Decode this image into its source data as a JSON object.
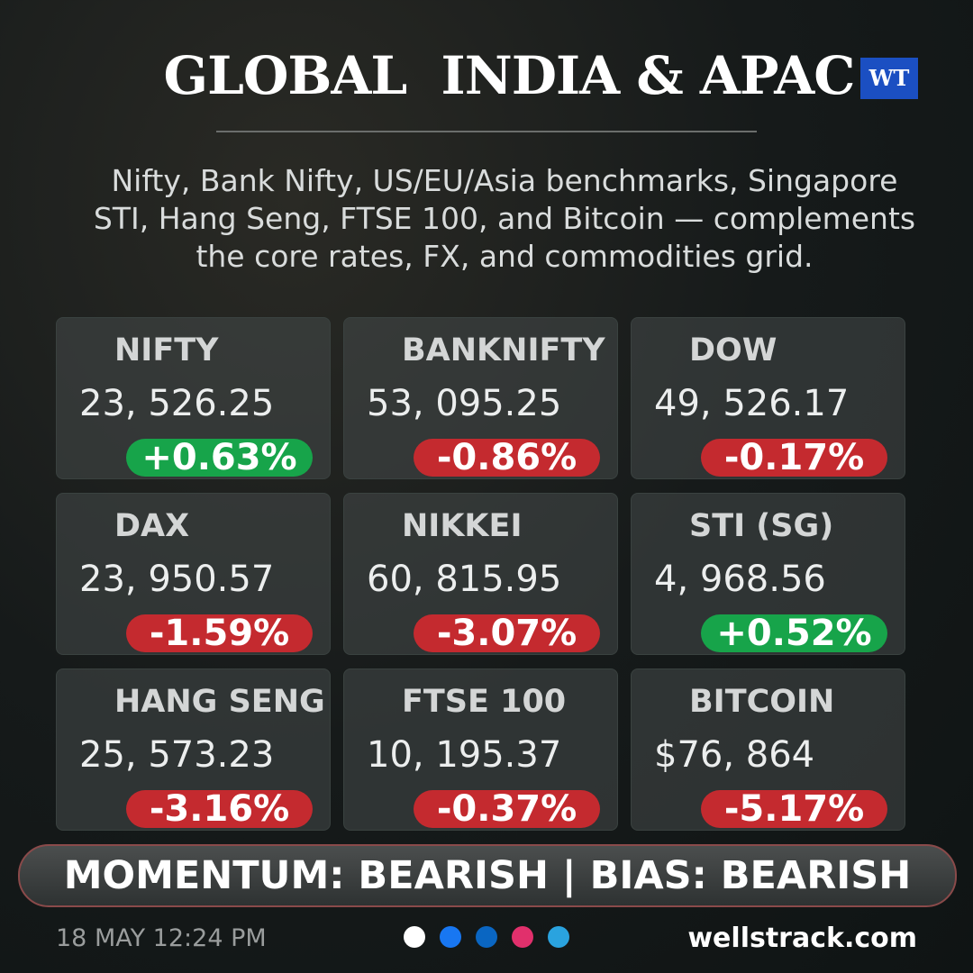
{
  "header": {
    "title": "GLOBAL  INDIA & APAC",
    "logo": "WT",
    "subtitle_lines": [
      "Nifty, Bank Nifty, US/EU/Asia benchmarks, Singapore",
      "STI, Hang Seng, FTSE 100, and Bitcoin — complements",
      "the core rates, FX, and commodities grid."
    ]
  },
  "cards": [
    {
      "name": "NIFTY",
      "value": "23, 526.25",
      "change": "+0.63%",
      "color": "#17a44a"
    },
    {
      "name": "BANKNIFTY",
      "value": "53, 095.25",
      "change": "-0.86%",
      "color": "#c42a2f"
    },
    {
      "name": "DOW",
      "value": "49, 526.17",
      "change": "-0.17%",
      "color": "#c42a2f"
    },
    {
      "name": "DAX",
      "value": "23, 950.57",
      "change": "-1.59%",
      "color": "#c42a2f"
    },
    {
      "name": "NIKKEI",
      "value": "60, 815.95",
      "change": "-3.07%",
      "color": "#c42a2f"
    },
    {
      "name": "STI (SG)",
      "value": "4, 968.56",
      "change": "+0.52%",
      "color": "#17a44a"
    },
    {
      "name": "HANG SENG",
      "value": "25, 573.23",
      "change": "-3.16%",
      "color": "#c42a2f"
    },
    {
      "name": "FTSE 100",
      "value": "10, 195.37",
      "change": "-0.37%",
      "color": "#c42a2f"
    },
    {
      "name": "BITCOIN",
      "value": "$76, 864",
      "change": "-5.17%",
      "color": "#c42a2f"
    }
  ],
  "banner": "MOMENTUM: BEARISH | BIAS: BEARISH",
  "footer": {
    "timestamp": "18 MAY 12:24 PM",
    "site": "wellstrack.com"
  }
}
